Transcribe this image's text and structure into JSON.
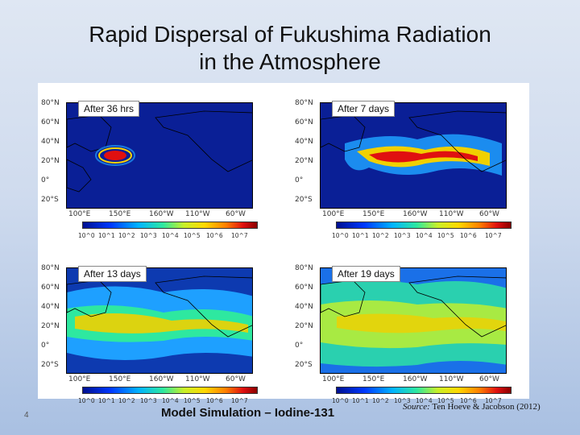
{
  "slide": {
    "title_line1": "Rapid Dispersal of Fukushima Radiation",
    "title_line2": "in the Atmosphere",
    "caption": "Model Simulation – Iodine-131",
    "source_label": "Source:",
    "source_text": "Ten Hoeve & Jacobson (2012)",
    "slide_number": "4"
  },
  "panels": [
    {
      "label": "After 36  hrs"
    },
    {
      "label": "After 7 days"
    },
    {
      "label": "After 13 days"
    },
    {
      "label": "After 19 days"
    }
  ],
  "axes": {
    "lat_ticks": [
      "80°N",
      "60°N",
      "40°N",
      "20°N",
      "0°",
      "20°S"
    ],
    "lon_ticks": [
      "100°E",
      "150°E",
      "160°W",
      "110°W",
      "60°W"
    ]
  },
  "colorbar": {
    "ticks": [
      "10^0",
      "10^1",
      "10^2",
      "10^3",
      "10^4",
      "10^5",
      "10^6",
      "10^7"
    ],
    "colors": [
      "#001090",
      "#0038ff",
      "#00b4ff",
      "#2ee8a0",
      "#c8f028",
      "#ffd800",
      "#ff8000",
      "#e01010",
      "#8a0000"
    ]
  },
  "colors": {
    "background_ocean": "#0a1f96",
    "plume_low": "#1ea0ff",
    "plume_mid": "#f0d000",
    "plume_high": "#e01010"
  }
}
